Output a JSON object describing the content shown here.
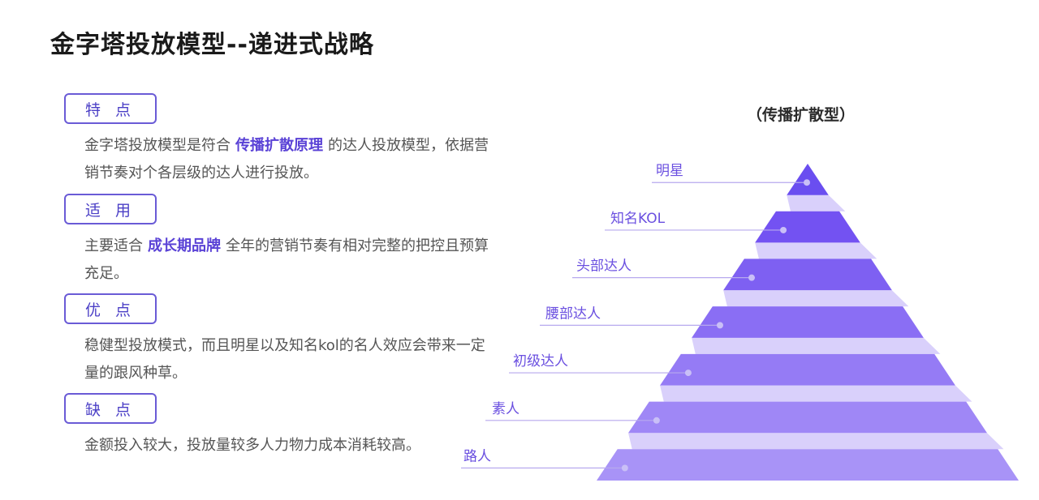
{
  "title": "金字塔投放模型--递进式战略",
  "sections": [
    {
      "label": "特 点",
      "pre": "金字塔投放模型是符合",
      "highlight": "传播扩散原理",
      "post": "的达人投放模型，依据营销节奏对个各层级的达人进行投放。"
    },
    {
      "label": "适 用",
      "pre": "主要适合",
      "highlight": "成长期品牌",
      "post": "全年的营销节奏有相对完整的把控且预算充足。"
    },
    {
      "label": "优 点",
      "text": "稳健型投放模式，而且明星以及知名kol的名人效应会带来一定量的跟风种草。"
    },
    {
      "label": "缺 点",
      "text": "金额投入较大，投放量较多人力物力成本消耗较高。"
    }
  ],
  "pyramid": {
    "caption": "（传播扩散型）",
    "levels": [
      "明星",
      "知名KOL",
      "头部达人",
      "腰部达人",
      "初级达人",
      "素人",
      "路人"
    ],
    "colors": {
      "accent": "#6a4fe0",
      "levels": [
        "#6a4ef0",
        "#7352f2",
        "#7e60f2",
        "#8a6ef4",
        "#957bf5",
        "#9f87f6",
        "#a893f7"
      ],
      "connector": "#d9d0fb"
    }
  }
}
